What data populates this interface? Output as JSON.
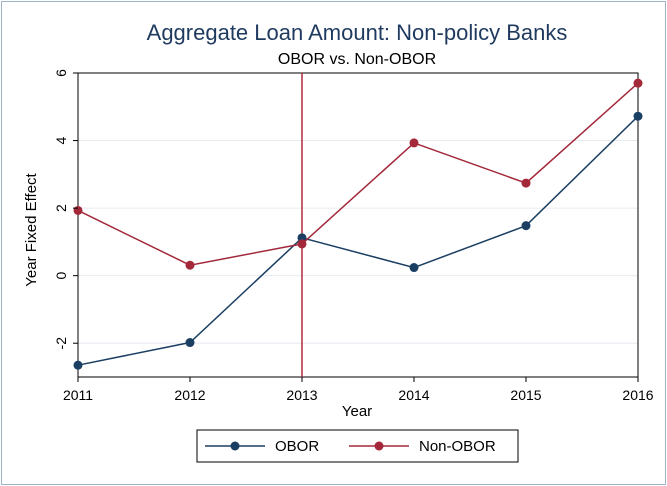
{
  "chart_data": {
    "type": "line",
    "title": "Aggregate Loan Amount: Non-policy Banks",
    "subtitle": "OBOR vs. Non-OBOR",
    "xlabel": "Year",
    "ylabel": "Year Fixed Effect",
    "x": [
      2011,
      2012,
      2013,
      2014,
      2015,
      2016
    ],
    "xticks": [
      "2011",
      "2012",
      "2013",
      "2014",
      "2015",
      "2016"
    ],
    "yticks": [
      "-2",
      "0",
      "2",
      "4",
      "6"
    ],
    "xlim": [
      2011,
      2016
    ],
    "ylim": [
      -3,
      6
    ],
    "grid": true,
    "vline": {
      "x": 2013,
      "color": "#b22a3a"
    },
    "legend": "bottom",
    "series": [
      {
        "name": "OBOR",
        "color": "#1b3f63",
        "values": [
          -2.65,
          -1.98,
          1.12,
          0.24,
          1.48,
          4.72
        ]
      },
      {
        "name": "Non-OBOR",
        "color": "#a3283a",
        "values": [
          1.93,
          0.31,
          0.94,
          3.93,
          2.74,
          5.7
        ]
      }
    ]
  }
}
